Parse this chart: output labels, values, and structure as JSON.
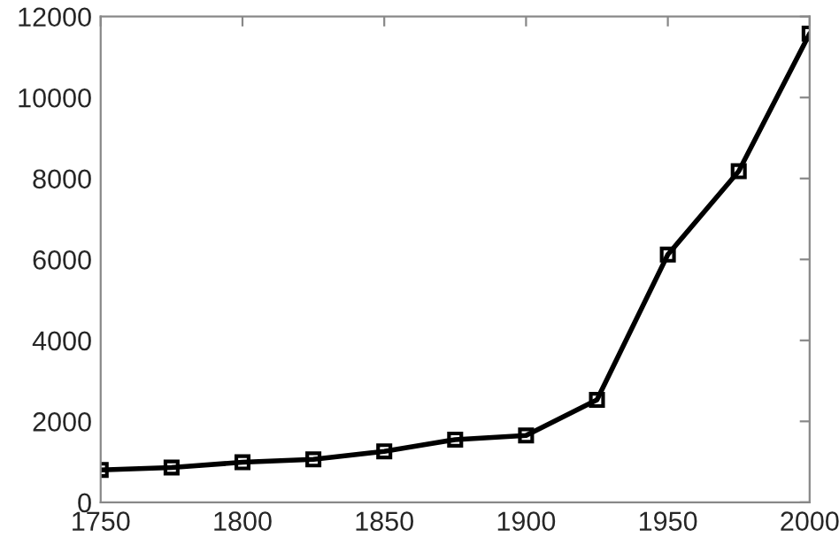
{
  "chart_data": {
    "type": "line",
    "x": [
      1750,
      1775,
      1800,
      1825,
      1850,
      1875,
      1900,
      1925,
      1950,
      1975,
      2000
    ],
    "series": [
      {
        "color": "#000000",
        "values": [
          800,
          860,
          990,
          1060,
          1260,
          1550,
          1650,
          2530,
          6120,
          8180,
          11580
        ]
      }
    ],
    "xlim": [
      1750,
      2000
    ],
    "xticks": [
      1750,
      1800,
      1850,
      1900,
      1950,
      2000
    ],
    "ylim": [
      0,
      12000
    ],
    "yticks": [
      0,
      2000,
      4000,
      6000,
      8000,
      10000,
      12000
    ],
    "marker": "square",
    "line_style": "solid",
    "grid": false,
    "legend": false
  }
}
